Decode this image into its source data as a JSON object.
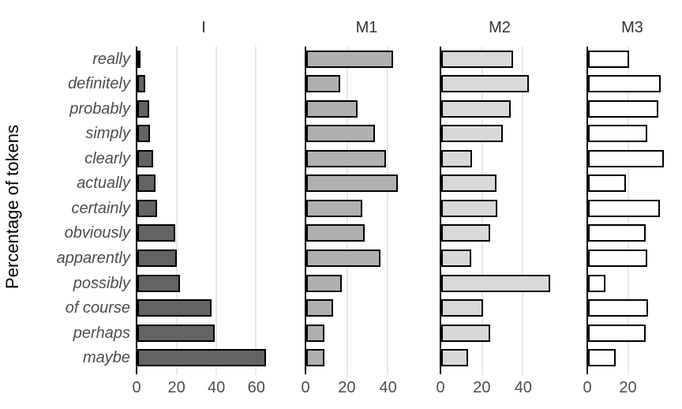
{
  "chart_data": {
    "type": "bar",
    "orientation": "horizontal",
    "title": "",
    "ylabel": "Percentage of tokens",
    "xlabel": "",
    "legend": "none",
    "grid": "vertical-light-gray",
    "categories": [
      "really",
      "definitely",
      "probably",
      "simply",
      "clearly",
      "actually",
      "certainly",
      "obviously",
      "apparently",
      "possibly",
      "of course",
      "perhaps",
      "maybe"
    ],
    "series": [
      {
        "name": "I",
        "fill": "#636363",
        "xlim": [
          0,
          68
        ],
        "xticks": [
          0,
          20,
          40,
          60
        ],
        "values": [
          1.5,
          4,
          6,
          6.5,
          8,
          9,
          10,
          19,
          20,
          21.5,
          37.5,
          39,
          65
        ]
      },
      {
        "name": "M1",
        "fill": "#b0b0b0",
        "xlim": [
          0,
          60
        ],
        "xticks": [
          0,
          20,
          40
        ],
        "values": [
          42.5,
          16.5,
          25,
          33.5,
          39,
          45,
          27.5,
          28.5,
          36.5,
          17.5,
          13,
          9,
          9
        ]
      },
      {
        "name": "M2",
        "fill": "#d9d9d9",
        "xlim": [
          0,
          58
        ],
        "xticks": [
          0,
          20,
          40
        ],
        "values": [
          35,
          43,
          34,
          30,
          15,
          27,
          27.5,
          24,
          14.5,
          53.5,
          20.5,
          24,
          13
        ]
      },
      {
        "name": "M3",
        "fill": "#ffffff",
        "xlim": [
          0,
          45
        ],
        "xticks": [
          0,
          20
        ],
        "values": [
          20.5,
          36.5,
          35,
          29.5,
          38,
          19,
          36,
          29,
          29.5,
          8.5,
          30,
          29,
          14
        ]
      }
    ],
    "colors": {
      "bar_outline": "#000000",
      "gridline": "#e8e8e8",
      "axis_text": "#4d4d4d",
      "panel_title_text": "#333333",
      "y_axis_title_text": "#000000",
      "background": "#ffffff"
    }
  }
}
